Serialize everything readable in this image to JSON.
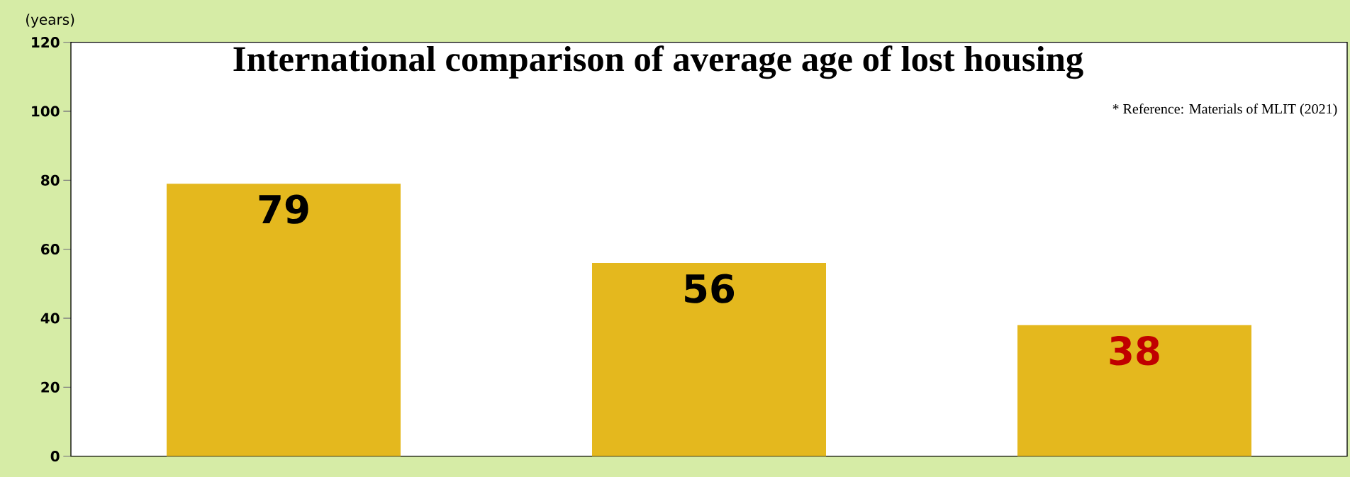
{
  "chart_data": {
    "type": "bar",
    "title": "International comparison of average age of lost housing",
    "ylabel": "(years)",
    "annotations": [
      "* Reference: Materials of MLIT (2021)"
    ],
    "categories": [
      null,
      null,
      null
    ],
    "values": [
      79,
      56,
      38
    ],
    "color": "#e4b81e",
    "ylim": [
      0,
      120
    ],
    "yticks": [
      0,
      20,
      40,
      60,
      80,
      100,
      120
    ],
    "data_labels": true
  }
}
